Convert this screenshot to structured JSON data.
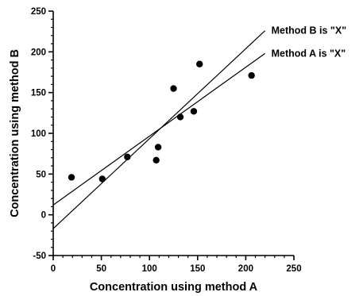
{
  "chart_data": {
    "type": "scatter",
    "xlabel": "Concentration using method A",
    "ylabel": "Concentration using method B",
    "xlim": [
      0,
      250
    ],
    "ylim": [
      -50,
      250
    ],
    "x_ticks": [
      0,
      50,
      100,
      150,
      200,
      250
    ],
    "y_ticks": [
      -50,
      0,
      50,
      100,
      150,
      200,
      250
    ],
    "x_tick_labels": [
      "0",
      "50",
      "100",
      "150",
      "200",
      "250"
    ],
    "y_tick_labels": [
      "-50",
      "0",
      "50",
      "100",
      "150",
      "200",
      "250"
    ],
    "grid": false,
    "points": [
      {
        "x": 19,
        "y": 46
      },
      {
        "x": 51,
        "y": 44
      },
      {
        "x": 77,
        "y": 71
      },
      {
        "x": 107,
        "y": 67
      },
      {
        "x": 109,
        "y": 83
      },
      {
        "x": 125,
        "y": 155
      },
      {
        "x": 132,
        "y": 120
      },
      {
        "x": 146,
        "y": 127
      },
      {
        "x": 152,
        "y": 185
      },
      {
        "x": 206,
        "y": 171
      }
    ],
    "lines": [
      {
        "name": "Method B is \"X\"",
        "label": "Method B is \"X\"",
        "x": [
          0,
          220
        ],
        "y": [
          -17,
          226
        ]
      },
      {
        "name": "Method A is \"X\"",
        "label": "Method A is \"X\"",
        "x": [
          0,
          220
        ],
        "y": [
          12,
          198
        ]
      }
    ]
  }
}
